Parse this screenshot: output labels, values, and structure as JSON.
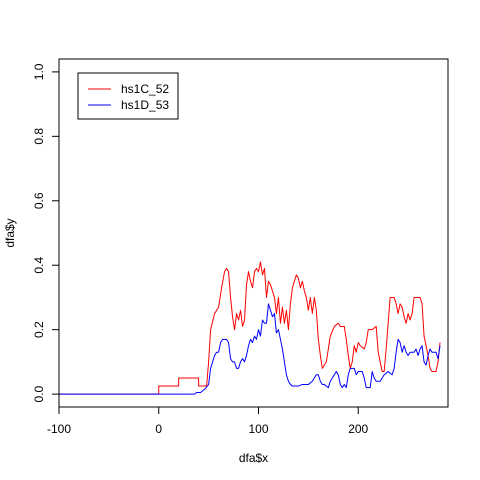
{
  "chart_data": {
    "type": "line",
    "title": "",
    "xlabel": "dfa$x",
    "ylabel": "dfa$y",
    "xlim": [
      -100,
      290
    ],
    "ylim": [
      0,
      1.0
    ],
    "xticks": [
      -100,
      0,
      100,
      200
    ],
    "yticks": [
      0.0,
      0.2,
      0.4,
      0.6,
      0.8,
      1.0
    ],
    "xtick_labels": [
      "-100",
      "0",
      "100",
      "200"
    ],
    "ytick_labels": [
      "0.0",
      "0.2",
      "0.4",
      "0.6",
      "0.8",
      "1.0"
    ],
    "grid": false,
    "legend_position": "top-left",
    "series": [
      {
        "name": "hs1C_52",
        "color": "#ff0000",
        "points": [
          [
            -100,
            0.0
          ],
          [
            0,
            0.0
          ],
          [
            0,
            0.025
          ],
          [
            20,
            0.025
          ],
          [
            20,
            0.05
          ],
          [
            40,
            0.05
          ],
          [
            40,
            0.025
          ],
          [
            48,
            0.025
          ],
          [
            50,
            0.1
          ],
          [
            52,
            0.2
          ],
          [
            56,
            0.25
          ],
          [
            60,
            0.27
          ],
          [
            63,
            0.33
          ],
          [
            66,
            0.38
          ],
          [
            68,
            0.39
          ],
          [
            70,
            0.38
          ],
          [
            72,
            0.3
          ],
          [
            74,
            0.24
          ],
          [
            76,
            0.2
          ],
          [
            78,
            0.25
          ],
          [
            80,
            0.23
          ],
          [
            82,
            0.26
          ],
          [
            84,
            0.21
          ],
          [
            86,
            0.23
          ],
          [
            88,
            0.34
          ],
          [
            90,
            0.38
          ],
          [
            92,
            0.35
          ],
          [
            94,
            0.33
          ],
          [
            96,
            0.38
          ],
          [
            98,
            0.39
          ],
          [
            100,
            0.38
          ],
          [
            102,
            0.41
          ],
          [
            104,
            0.37
          ],
          [
            106,
            0.39
          ],
          [
            108,
            0.3
          ],
          [
            110,
            0.35
          ],
          [
            112,
            0.34
          ],
          [
            114,
            0.32
          ],
          [
            116,
            0.3
          ],
          [
            118,
            0.25
          ],
          [
            120,
            0.3
          ],
          [
            122,
            0.22
          ],
          [
            124,
            0.27
          ],
          [
            126,
            0.22
          ],
          [
            128,
            0.26
          ],
          [
            130,
            0.2
          ],
          [
            132,
            0.28
          ],
          [
            134,
            0.33
          ],
          [
            136,
            0.35
          ],
          [
            138,
            0.37
          ],
          [
            140,
            0.36
          ],
          [
            142,
            0.33
          ],
          [
            144,
            0.35
          ],
          [
            146,
            0.32
          ],
          [
            148,
            0.3
          ],
          [
            150,
            0.26
          ],
          [
            152,
            0.3
          ],
          [
            154,
            0.25
          ],
          [
            156,
            0.3
          ],
          [
            158,
            0.26
          ],
          [
            160,
            0.17
          ],
          [
            162,
            0.12
          ],
          [
            164,
            0.08
          ],
          [
            168,
            0.1
          ],
          [
            170,
            0.14
          ],
          [
            172,
            0.18
          ],
          [
            176,
            0.21
          ],
          [
            180,
            0.22
          ],
          [
            182,
            0.21
          ],
          [
            186,
            0.21
          ],
          [
            188,
            0.17
          ],
          [
            190,
            0.12
          ],
          [
            192,
            0.08
          ],
          [
            194,
            0.1
          ],
          [
            196,
            0.15
          ],
          [
            198,
            0.13
          ],
          [
            200,
            0.16
          ],
          [
            202,
            0.15
          ],
          [
            206,
            0.14
          ],
          [
            208,
            0.16
          ],
          [
            210,
            0.2
          ],
          [
            214,
            0.2
          ],
          [
            218,
            0.21
          ],
          [
            220,
            0.13
          ],
          [
            222,
            0.1
          ],
          [
            224,
            0.07
          ],
          [
            226,
            0.07
          ],
          [
            228,
            0.14
          ],
          [
            230,
            0.22
          ],
          [
            232,
            0.3
          ],
          [
            236,
            0.3
          ],
          [
            238,
            0.28
          ],
          [
            240,
            0.25
          ],
          [
            242,
            0.28
          ],
          [
            244,
            0.27
          ],
          [
            246,
            0.24
          ],
          [
            248,
            0.22
          ],
          [
            250,
            0.25
          ],
          [
            252,
            0.23
          ],
          [
            254,
            0.25
          ],
          [
            256,
            0.3
          ],
          [
            258,
            0.3
          ],
          [
            262,
            0.3
          ],
          [
            264,
            0.28
          ],
          [
            266,
            0.18
          ],
          [
            268,
            0.15
          ],
          [
            270,
            0.12
          ],
          [
            272,
            0.08
          ],
          [
            274,
            0.07
          ],
          [
            278,
            0.07
          ],
          [
            280,
            0.1
          ],
          [
            282,
            0.16
          ]
        ]
      },
      {
        "name": "hs1D_53",
        "color": "#0000ff",
        "points": [
          [
            -100,
            0.0
          ],
          [
            36,
            0.0
          ],
          [
            38,
            0.005
          ],
          [
            42,
            0.005
          ],
          [
            46,
            0.015
          ],
          [
            50,
            0.03
          ],
          [
            52,
            0.08
          ],
          [
            54,
            0.1
          ],
          [
            56,
            0.12
          ],
          [
            58,
            0.13
          ],
          [
            60,
            0.13
          ],
          [
            62,
            0.16
          ],
          [
            64,
            0.17
          ],
          [
            68,
            0.17
          ],
          [
            70,
            0.16
          ],
          [
            72,
            0.11
          ],
          [
            74,
            0.1
          ],
          [
            76,
            0.1
          ],
          [
            78,
            0.08
          ],
          [
            80,
            0.08
          ],
          [
            82,
            0.1
          ],
          [
            84,
            0.11
          ],
          [
            86,
            0.1
          ],
          [
            88,
            0.12
          ],
          [
            90,
            0.15
          ],
          [
            92,
            0.17
          ],
          [
            94,
            0.16
          ],
          [
            96,
            0.18
          ],
          [
            98,
            0.17
          ],
          [
            100,
            0.2
          ],
          [
            102,
            0.18
          ],
          [
            104,
            0.23
          ],
          [
            106,
            0.22
          ],
          [
            108,
            0.22
          ],
          [
            110,
            0.28
          ],
          [
            112,
            0.26
          ],
          [
            114,
            0.24
          ],
          [
            116,
            0.25
          ],
          [
            118,
            0.19
          ],
          [
            120,
            0.2
          ],
          [
            122,
            0.17
          ],
          [
            124,
            0.14
          ],
          [
            126,
            0.1
          ],
          [
            128,
            0.06
          ],
          [
            130,
            0.04
          ],
          [
            132,
            0.03
          ],
          [
            134,
            0.025
          ],
          [
            140,
            0.025
          ],
          [
            144,
            0.03
          ],
          [
            150,
            0.03
          ],
          [
            154,
            0.04
          ],
          [
            156,
            0.05
          ],
          [
            158,
            0.06
          ],
          [
            160,
            0.06
          ],
          [
            162,
            0.04
          ],
          [
            164,
            0.03
          ],
          [
            166,
            0.03
          ],
          [
            170,
            0.02
          ],
          [
            172,
            0.04
          ],
          [
            176,
            0.06
          ],
          [
            178,
            0.07
          ],
          [
            180,
            0.06
          ],
          [
            182,
            0.03
          ],
          [
            184,
            0.02
          ],
          [
            186,
            0.03
          ],
          [
            188,
            0.02
          ],
          [
            190,
            0.06
          ],
          [
            192,
            0.08
          ],
          [
            196,
            0.08
          ],
          [
            198,
            0.06
          ],
          [
            200,
            0.07
          ],
          [
            204,
            0.07
          ],
          [
            206,
            0.05
          ],
          [
            208,
            0.02
          ],
          [
            212,
            0.02
          ],
          [
            214,
            0.07
          ],
          [
            216,
            0.05
          ],
          [
            218,
            0.04
          ],
          [
            222,
            0.04
          ],
          [
            224,
            0.05
          ],
          [
            226,
            0.06
          ],
          [
            230,
            0.07
          ],
          [
            234,
            0.06
          ],
          [
            236,
            0.08
          ],
          [
            238,
            0.13
          ],
          [
            240,
            0.17
          ],
          [
            242,
            0.16
          ],
          [
            244,
            0.13
          ],
          [
            246,
            0.15
          ],
          [
            248,
            0.13
          ],
          [
            250,
            0.12
          ],
          [
            252,
            0.13
          ],
          [
            256,
            0.13
          ],
          [
            258,
            0.14
          ],
          [
            260,
            0.12
          ],
          [
            262,
            0.14
          ],
          [
            264,
            0.15
          ],
          [
            266,
            0.1
          ],
          [
            268,
            0.09
          ],
          [
            270,
            0.12
          ],
          [
            272,
            0.14
          ],
          [
            274,
            0.13
          ],
          [
            278,
            0.13
          ],
          [
            280,
            0.11
          ],
          [
            282,
            0.15
          ]
        ]
      }
    ]
  }
}
